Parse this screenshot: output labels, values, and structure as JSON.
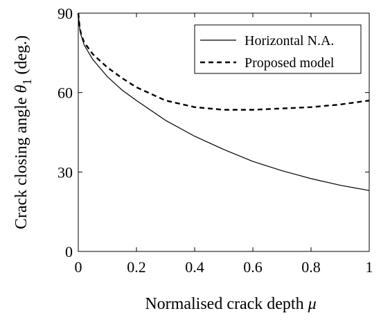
{
  "chart_data": {
    "type": "line",
    "xlabel": "Normalised crack depth",
    "xlabel_symbol": "μ",
    "ylabel": "Crack closing angle",
    "ylabel_symbol": "θ",
    "ylabel_subscript": "1",
    "ylabel_unit": "(deg.)",
    "xlim": [
      0,
      1
    ],
    "ylim": [
      0,
      90
    ],
    "xticks": [
      0,
      0.2,
      0.4,
      0.6,
      0.8,
      1
    ],
    "xtick_labels": [
      "0",
      "0.2",
      "0.4",
      "0.6",
      "0.8",
      "1"
    ],
    "yticks": [
      0,
      30,
      60,
      90
    ],
    "ytick_labels": [
      "0",
      "30",
      "60",
      "90"
    ],
    "grid": false,
    "legend_position": "top-right",
    "series": [
      {
        "name": "Horizontal N.A.",
        "style": "solid",
        "x": [
          0,
          0.005,
          0.01,
          0.02,
          0.05,
          0.1,
          0.15,
          0.2,
          0.3,
          0.4,
          0.5,
          0.6,
          0.7,
          0.8,
          0.9,
          1.0
        ],
        "y": [
          90,
          84,
          81.5,
          78,
          72.5,
          66,
          61,
          57,
          49.5,
          43.5,
          38.5,
          34,
          30.5,
          27.5,
          25,
          23
        ]
      },
      {
        "name": "Proposed model",
        "style": "dashed",
        "x": [
          0,
          0.005,
          0.01,
          0.02,
          0.05,
          0.1,
          0.15,
          0.2,
          0.3,
          0.4,
          0.5,
          0.6,
          0.7,
          0.8,
          0.9,
          1.0
        ],
        "y": [
          90,
          84.5,
          82,
          79,
          74.5,
          69.5,
          65.5,
          62,
          57,
          54.5,
          53.5,
          53.5,
          54,
          54.5,
          55.5,
          57
        ]
      }
    ]
  }
}
